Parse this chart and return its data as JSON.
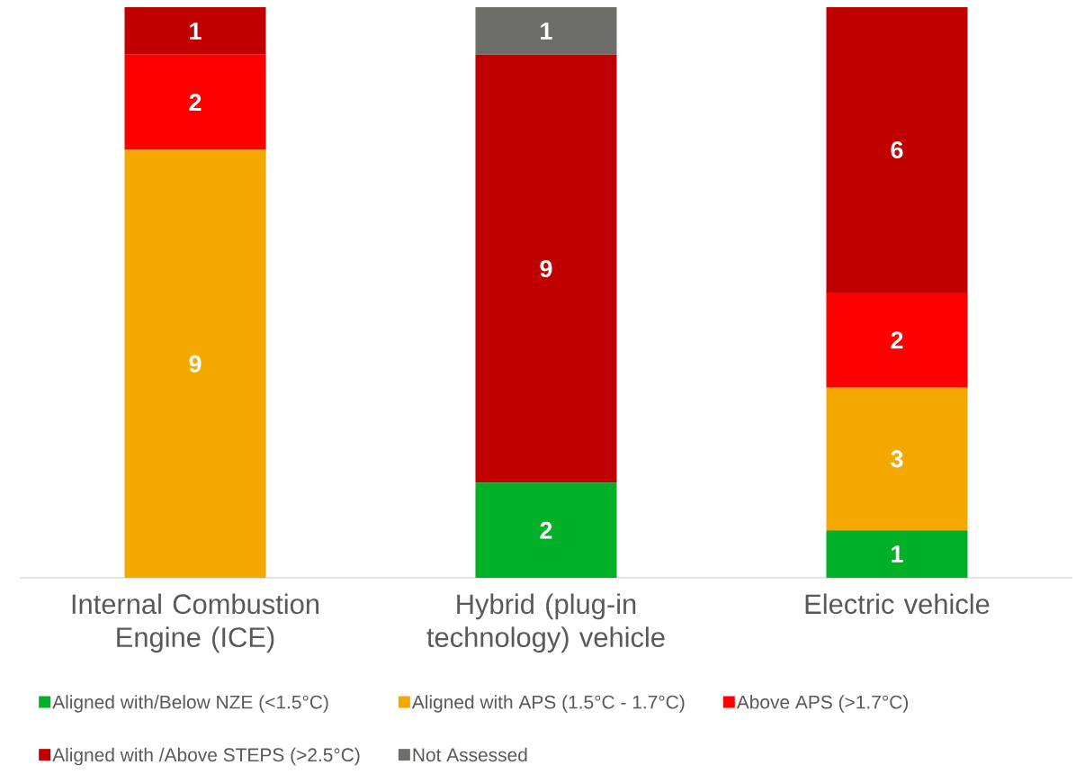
{
  "chart_data": {
    "type": "bar",
    "stacked": true,
    "categories": [
      "Internal Combustion Engine (ICE)",
      "Hybrid (plug-in technology) vehicle",
      "Electric vehicle"
    ],
    "series": [
      {
        "name": "Aligned with/Below NZE (<1.5°C)",
        "color": "#00b026",
        "values": [
          null,
          2,
          1
        ]
      },
      {
        "name": "Aligned with APS (1.5°C - 1.7°C)",
        "color": "#f5a800",
        "values": [
          9,
          null,
          3
        ]
      },
      {
        "name": "Above APS (>1.7°C)",
        "color": "#ff0000",
        "values": [
          2,
          null,
          2
        ]
      },
      {
        "name": "Aligned with /Above STEPS (>2.5°C)",
        "color": "#c00000",
        "values": [
          1,
          9,
          6
        ]
      },
      {
        "name": "Not Assessed",
        "color": "#6d6e6a",
        "values": [
          null,
          1,
          null
        ]
      }
    ],
    "tick_labels": "x",
    "data_labels": true,
    "legend": "bottom"
  }
}
